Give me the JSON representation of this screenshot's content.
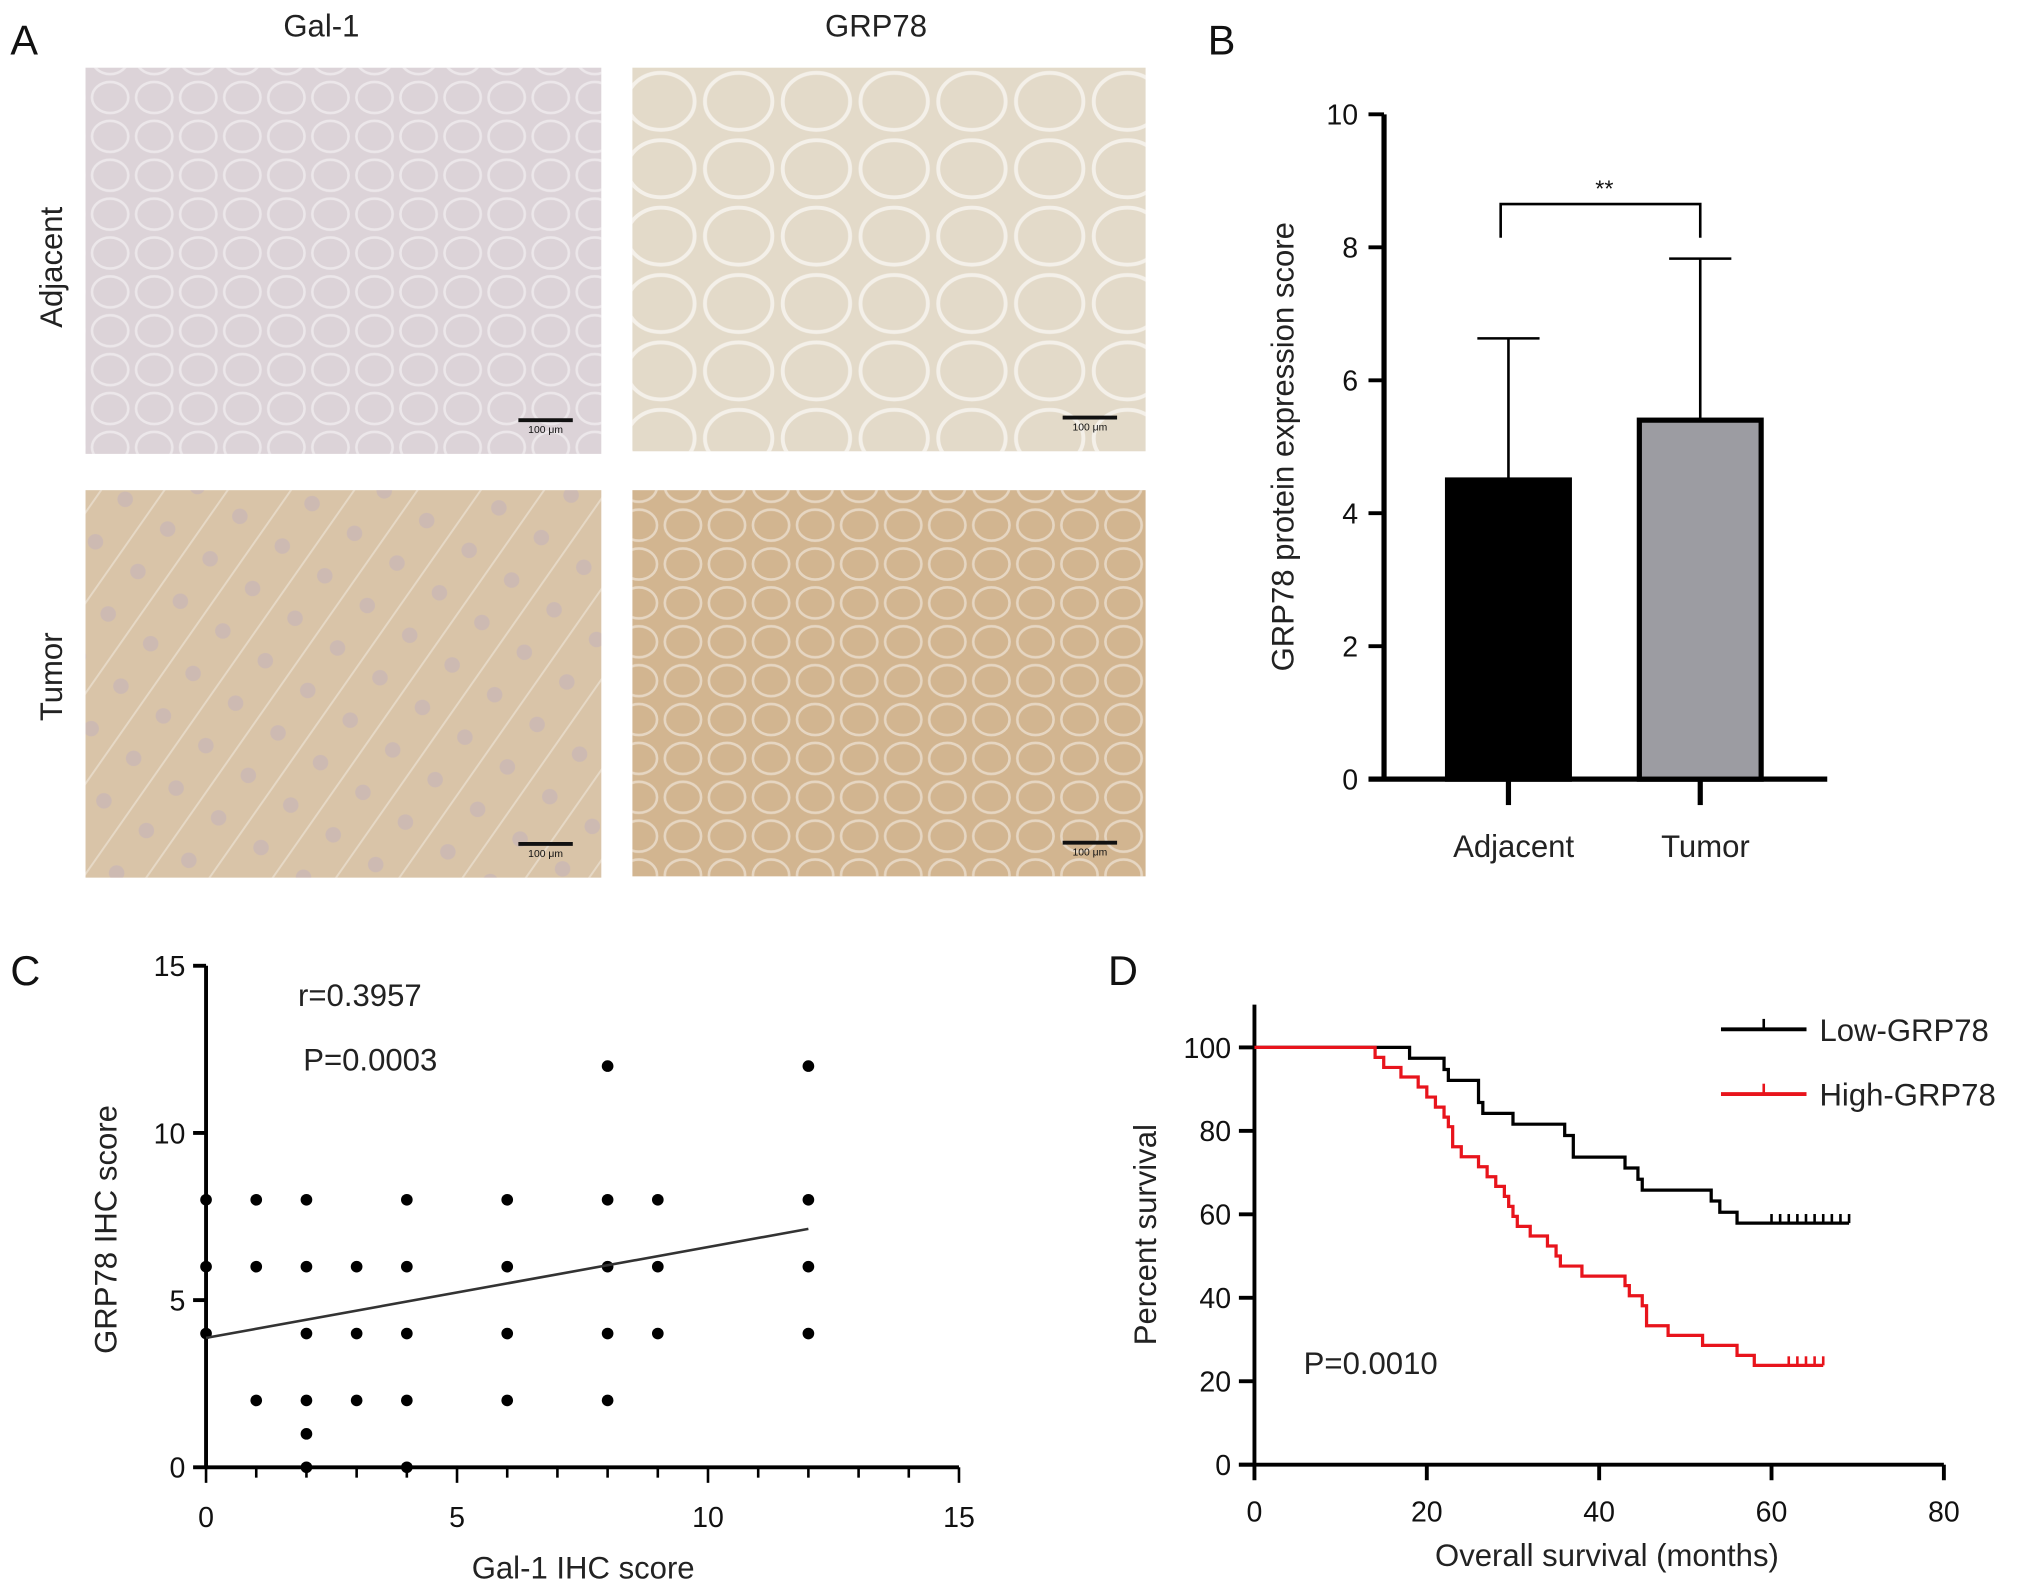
{
  "panel_letters": {
    "a": "A",
    "b": "B",
    "c": "C",
    "d": "D"
  },
  "panel_a": {
    "column_labels": [
      "Gal-1",
      "GRP78"
    ],
    "row_labels": [
      "Adjacent",
      "Tumor"
    ],
    "scale_bar_label": "100 μm",
    "tissue_colors": {
      "adjacent_gal1": "#dcd3d8",
      "adjacent_grp78": "#e3dac9",
      "tumor_gal1": "#d9c4a8",
      "tumor_grp78": "#d2b590"
    }
  },
  "chart_data": [
    {
      "type": "bar",
      "panel": "B",
      "categories": [
        "Adjacent",
        "Tumor"
      ],
      "values": [
        4.5,
        5.4
      ],
      "error_upper": [
        6.63,
        7.83
      ],
      "ylabel": "GRP78 protein expression score",
      "xlabel": "",
      "ylim": [
        0,
        10
      ],
      "yticks": [
        0,
        2,
        4,
        6,
        8,
        10
      ],
      "colors": [
        "#000000",
        "#9c9ca2"
      ],
      "significance": {
        "label": "**",
        "between": [
          "Adjacent",
          "Tumor"
        ],
        "y": 8.65
      }
    },
    {
      "type": "scatter",
      "panel": "C",
      "xlabel": "Gal-1 IHC score",
      "ylabel": "GRP78 IHC score",
      "xlim": [
        0,
        15
      ],
      "ylim": [
        0,
        15
      ],
      "xticks": [
        0,
        5,
        10,
        15
      ],
      "yticks": [
        0,
        5,
        10,
        15
      ],
      "points": [
        [
          0,
          8
        ],
        [
          0,
          6
        ],
        [
          0,
          4
        ],
        [
          1,
          8
        ],
        [
          1,
          6
        ],
        [
          1,
          2
        ],
        [
          2,
          8
        ],
        [
          2,
          6
        ],
        [
          2,
          4
        ],
        [
          2,
          2
        ],
        [
          2,
          1
        ],
        [
          2,
          0
        ],
        [
          3,
          6
        ],
        [
          3,
          4
        ],
        [
          3,
          2
        ],
        [
          4,
          8
        ],
        [
          4,
          6
        ],
        [
          4,
          4
        ],
        [
          4,
          2
        ],
        [
          4,
          0
        ],
        [
          6,
          8
        ],
        [
          6,
          6
        ],
        [
          6,
          4
        ],
        [
          6,
          2
        ],
        [
          8,
          12
        ],
        [
          8,
          8
        ],
        [
          8,
          6
        ],
        [
          8,
          4
        ],
        [
          8,
          2
        ],
        [
          9,
          8
        ],
        [
          9,
          6
        ],
        [
          9,
          4
        ],
        [
          12,
          12
        ],
        [
          12,
          8
        ],
        [
          12,
          6
        ],
        [
          12,
          4
        ]
      ],
      "fit_line": [
        [
          0,
          3.87
        ],
        [
          12,
          7.13
        ]
      ],
      "annotations": [
        "r=0.3957",
        "P=0.0003"
      ]
    },
    {
      "type": "line",
      "panel": "D",
      "xlabel": "Overall survival (months)",
      "ylabel": "Percent survival",
      "xlim": [
        0,
        80
      ],
      "ylim": [
        0,
        110
      ],
      "xticks": [
        0,
        20,
        40,
        60,
        80
      ],
      "yticks": [
        0,
        20,
        40,
        60,
        80,
        100
      ],
      "legend_placement": "top-right",
      "annotation": "P=0.0010",
      "series": [
        {
          "name": "Low-GRP78",
          "color": "#000000",
          "steps": [
            [
              0,
              100
            ],
            [
              18,
              97.4
            ],
            [
              22,
              94.7
            ],
            [
              22.5,
              92.1
            ],
            [
              26,
              86.8
            ],
            [
              26.5,
              84.2
            ],
            [
              30,
              81.6
            ],
            [
              36,
              78.9
            ],
            [
              37,
              73.7
            ],
            [
              43,
              71.1
            ],
            [
              44.5,
              68.4
            ],
            [
              45,
              65.8
            ],
            [
              53,
              63.2
            ],
            [
              54,
              60.5
            ],
            [
              56,
              57.9
            ]
          ],
          "end": 69,
          "censored": [
            60,
            61,
            62,
            63,
            64,
            65,
            66,
            67,
            68,
            69
          ]
        },
        {
          "name": "High-GRP78",
          "color": "#e8141c",
          "steps": [
            [
              0,
              100
            ],
            [
              14,
              97.6
            ],
            [
              15,
              95.2
            ],
            [
              17,
              92.9
            ],
            [
              19,
              90.5
            ],
            [
              20,
              88.1
            ],
            [
              21,
              85.7
            ],
            [
              22,
              83.3
            ],
            [
              22.5,
              81
            ],
            [
              23,
              76.2
            ],
            [
              24,
              73.8
            ],
            [
              26,
              71.4
            ],
            [
              27,
              69
            ],
            [
              28,
              66.7
            ],
            [
              29,
              64.3
            ],
            [
              29.5,
              61.9
            ],
            [
              30,
              59.5
            ],
            [
              30.5,
              57.1
            ],
            [
              32,
              54.8
            ],
            [
              34,
              52.4
            ],
            [
              35,
              50
            ],
            [
              35.5,
              47.6
            ],
            [
              38,
              45.2
            ],
            [
              43,
              42.9
            ],
            [
              43.5,
              40.5
            ],
            [
              45,
              38.1
            ],
            [
              45.5,
              33.3
            ],
            [
              48,
              31
            ],
            [
              52,
              28.6
            ],
            [
              56,
              26.2
            ],
            [
              58,
              23.8
            ]
          ],
          "end": 66,
          "censored": [
            62,
            63,
            64,
            65,
            66
          ]
        }
      ]
    }
  ]
}
